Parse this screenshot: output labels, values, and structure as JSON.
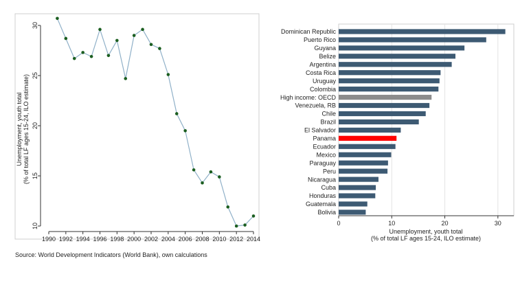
{
  "chart_data": [
    {
      "type": "line",
      "title": "",
      "xlabel": "",
      "ylabel_lines": [
        "Unemployment, youth total",
        "(% of total LF ages 15-24, ILO estimate)"
      ],
      "x": [
        1991,
        1992,
        1993,
        1994,
        1995,
        1996,
        1997,
        1998,
        1999,
        2000,
        2001,
        2002,
        2003,
        2004,
        2005,
        2006,
        2007,
        2008,
        2009,
        2010,
        2011,
        2012,
        2013,
        2014
      ],
      "series": [
        {
          "values": [
            30.7,
            28.7,
            26.7,
            27.3,
            26.9,
            29.6,
            27.0,
            28.5,
            24.7,
            29.0,
            29.6,
            28.1,
            27.7,
            25.1,
            21.2,
            19.5,
            15.6,
            14.3,
            15.4,
            14.9,
            11.9,
            10.0,
            10.1,
            11.0
          ],
          "color": "#8fb0c8",
          "marker_color": "#1b5e20"
        }
      ],
      "xlim": [
        1990,
        2014
      ],
      "ylim": [
        10,
        30
      ],
      "xticks": [
        "1990",
        "1992",
        "1994",
        "1996",
        "1998",
        "2000",
        "2002",
        "2004",
        "2006",
        "2008",
        "2010",
        "2012",
        "2014"
      ],
      "yticks": [
        "10",
        "15",
        "20",
        "25",
        "30"
      ],
      "grid": false
    },
    {
      "type": "bar",
      "orientation": "horizontal",
      "title": "",
      "xlabel_lines": [
        "Unemployment, youth total",
        "(% of total LF ages 15-24, ILO estimate)"
      ],
      "categories": [
        "Dominican Republic",
        "Puerto Rico",
        "Guyana",
        "Belize",
        "Argentina",
        "Costa Rica",
        "Uruguay",
        "Colombia",
        "High income: OECD",
        "Venezuela, RB",
        "Chile",
        "Brazil",
        "El Salvador",
        "Panama",
        "Ecuador",
        "Mexico",
        "Paraguay",
        "Peru",
        "Nicaragua",
        "Cuba",
        "Honduras",
        "Guatemala",
        "Bolivia"
      ],
      "values": [
        31.4,
        27.8,
        23.7,
        22.0,
        21.3,
        19.2,
        19.0,
        18.8,
        17.5,
        17.1,
        16.4,
        15.1,
        11.7,
        10.9,
        10.7,
        9.9,
        9.3,
        9.2,
        7.5,
        7.0,
        6.9,
        5.4,
        5.1
      ],
      "colors": {
        "default": "#3d5a73",
        "highlight_oecd": "#8c8c8c",
        "highlight_panama": "#ff0000"
      },
      "xlim": [
        0,
        33
      ],
      "xticks": [
        "0",
        "10",
        "20",
        "30"
      ],
      "grid": "vertical"
    }
  ],
  "footer": {
    "source": "Source: World Development Indicators (World Bank), own calculations"
  }
}
